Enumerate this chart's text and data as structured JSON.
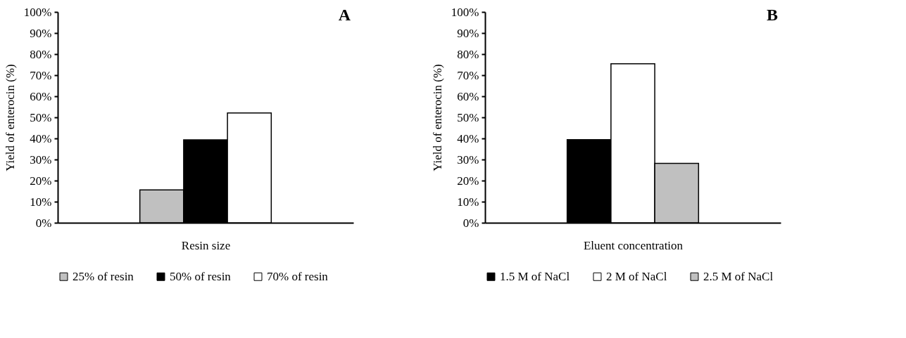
{
  "chart_data": [
    {
      "type": "bar",
      "title": "A",
      "xlabel": "Resin size",
      "ylabel": "Yield of enterocin  (%)",
      "categories": [
        null
      ],
      "series": [
        {
          "name": "25% of resin",
          "color": "#c0c0c0",
          "values": [
            15.6
          ]
        },
        {
          "name": "50% of resin",
          "color": "#000000",
          "values": [
            39.3
          ]
        },
        {
          "name": "70% of resin",
          "color": "#ffffff",
          "values": [
            52.1
          ]
        }
      ],
      "ylim": [
        0,
        100
      ],
      "yticks": [
        {
          "value": 0,
          "label": "0%"
        },
        {
          "value": 10,
          "label": "10%"
        },
        {
          "value": 20,
          "label": "20%"
        },
        {
          "value": 30,
          "label": "30%"
        },
        {
          "value": 40,
          "label": "40%"
        },
        {
          "value": 50,
          "label": "50%"
        },
        {
          "value": 60,
          "label": "60%"
        },
        {
          "value": 70,
          "label": "70%"
        },
        {
          "value": 80,
          "label": "80%"
        },
        {
          "value": 90,
          "label": "90%"
        },
        {
          "value": 100,
          "label": "100%"
        }
      ],
      "grid": false,
      "legend": "bottom"
    },
    {
      "type": "bar",
      "title": "B",
      "xlabel": "Eluent concentration",
      "ylabel": "Yield of enterocin  (%)",
      "categories": [
        null
      ],
      "series": [
        {
          "name": "1.5 M of NaCl",
          "color": "#000000",
          "values": [
            39.4
          ]
        },
        {
          "name": "2 M of NaCl",
          "color": "#ffffff",
          "values": [
            75.4
          ]
        },
        {
          "name": "2.5 M of NaCl",
          "color": "#c0c0c0",
          "values": [
            28.2
          ]
        }
      ],
      "ylim": [
        0,
        100
      ],
      "yticks": [
        {
          "value": 0,
          "label": "0%"
        },
        {
          "value": 10,
          "label": "10%"
        },
        {
          "value": 20,
          "label": "20%"
        },
        {
          "value": 30,
          "label": "30%"
        },
        {
          "value": 40,
          "label": "40%"
        },
        {
          "value": 50,
          "label": "50%"
        },
        {
          "value": 60,
          "label": "60%"
        },
        {
          "value": 70,
          "label": "70%"
        },
        {
          "value": 80,
          "label": "80%"
        },
        {
          "value": 90,
          "label": "90%"
        },
        {
          "value": 100,
          "label": "100%"
        }
      ],
      "grid": false,
      "legend": "bottom"
    }
  ]
}
